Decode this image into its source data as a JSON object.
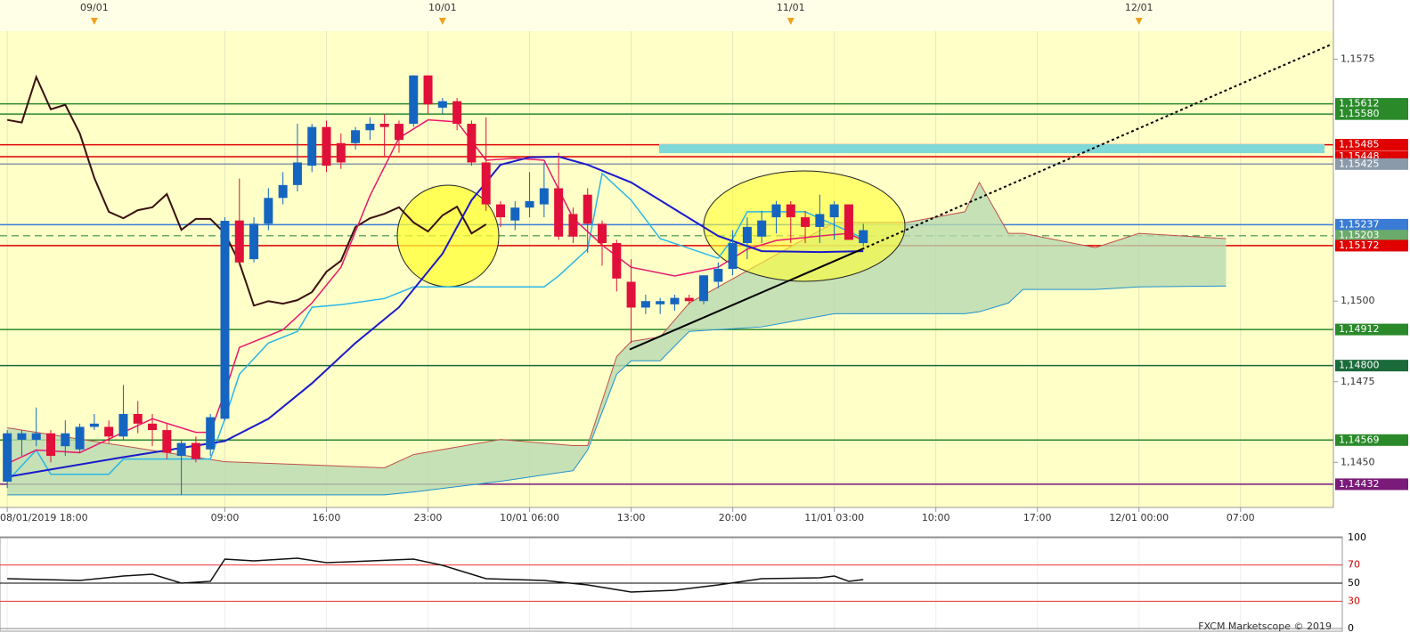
{
  "chart_data": {
    "type": "candlestick",
    "xlim": [
      -0.5,
      91.4
    ],
    "ylim": [
      1.1436,
      1.1584
    ],
    "yticks": [
      {
        "value": 1.1575,
        "label": "1,1575"
      },
      {
        "value": 1.15,
        "label": "1,1500"
      },
      {
        "value": 1.1475,
        "label": "1,1475"
      },
      {
        "value": 1.145,
        "label": "1,1450"
      }
    ],
    "xticks": [
      {
        "value": 0,
        "label": "08/01/2019 18:00"
      },
      {
        "value": 15,
        "label": "09:00"
      },
      {
        "value": 22,
        "label": "16:00"
      },
      {
        "value": 29,
        "label": "23:00"
      },
      {
        "value": 36,
        "label": "10/01 06:00"
      },
      {
        "value": 43,
        "label": "13:00"
      },
      {
        "value": 50,
        "label": "20:00"
      },
      {
        "value": 57,
        "label": "11/01 03:00"
      },
      {
        "value": 64,
        "label": "10:00"
      },
      {
        "value": 71,
        "label": "17:00"
      },
      {
        "value": 78,
        "label": "12/01 00:00"
      },
      {
        "value": 85,
        "label": "07:00"
      }
    ],
    "x2ticks": [
      {
        "value": 6,
        "label": "09/01"
      },
      {
        "value": 30,
        "label": "10/01"
      },
      {
        "value": 54,
        "label": "11/01"
      },
      {
        "value": 78,
        "label": "12/01"
      }
    ],
    "up_color": "#1565c0",
    "down_color": "#e0103a",
    "open": [
      1.1444,
      1.1457,
      1.1457,
      1.1459,
      1.1455,
      1.1454,
      1.1461,
      1.1461,
      1.1458,
      1.1465,
      1.1462,
      1.146,
      1.1452,
      1.1456,
      1.1454,
      1.14635,
      1.1525,
      1.1513,
      1.1524,
      1.1532,
      1.1536,
      1.1542,
      1.1554,
      1.1549,
      1.1549,
      1.1553,
      1.1555,
      1.1555,
      1.1555,
      1.157,
      1.156,
      1.1562,
      1.1555,
      1.1543,
      1.153,
      1.1525,
      1.1529,
      1.153,
      1.1535,
      1.1527,
      1.1533,
      1.1524,
      1.1518,
      1.1506,
      1.1498,
      1.1499,
      1.1499,
      1.1501,
      1.15,
      1.1506,
      1.151,
      1.1518,
      1.152,
      1.1526,
      1.153,
      1.1526,
      1.1523,
      1.1526,
      1.153,
      1.1518
    ],
    "high": [
      1.146,
      1.146,
      1.1467,
      1.146,
      1.1463,
      1.1462,
      1.1465,
      1.1463,
      1.1474,
      1.1469,
      1.1465,
      1.1462,
      1.1457,
      1.1458,
      1.1465,
      1.1526,
      1.1538,
      1.1526,
      1.1535,
      1.154,
      1.1555,
      1.1555,
      1.1556,
      1.1552,
      1.1554,
      1.1557,
      1.1558,
      1.1556,
      1.157,
      1.157,
      1.1563,
      1.1563,
      1.1556,
      1.1557,
      1.1531,
      1.1531,
      1.154,
      1.1543,
      1.1546,
      1.1529,
      1.1535,
      1.1525,
      1.1519,
      1.1513,
      1.1502,
      1.1501,
      1.1502,
      1.1502,
      1.1508,
      1.1512,
      1.1522,
      1.1526,
      1.1528,
      1.1531,
      1.1531,
      1.1528,
      1.1533,
      1.1531,
      1.153,
      1.1524
    ],
    "low": [
      1.1442,
      1.1452,
      1.1455,
      1.145,
      1.1452,
      1.1453,
      1.146,
      1.1456,
      1.1457,
      1.1459,
      1.1455,
      1.1451,
      1.144,
      1.145,
      1.1452,
      1.1463,
      1.1511,
      1.1512,
      1.1522,
      1.153,
      1.1534,
      1.154,
      1.154,
      1.1541,
      1.1547,
      1.155,
      1.1545,
      1.1546,
      1.1554,
      1.1558,
      1.1558,
      1.1553,
      1.1542,
      1.1528,
      1.1523,
      1.1522,
      1.1526,
      1.1526,
      1.1519,
      1.1518,
      1.1515,
      1.1511,
      1.1503,
      1.1487,
      1.1496,
      1.1496,
      1.1497,
      1.1499,
      1.1499,
      1.1504,
      1.1508,
      1.1513,
      1.1518,
      1.1521,
      1.1518,
      1.1518,
      1.1518,
      1.1519,
      1.1519,
      1.1517
    ],
    "close": [
      1.1459,
      1.1459,
      1.1459,
      1.1452,
      1.1459,
      1.1461,
      1.1462,
      1.1458,
      1.1465,
      1.1462,
      1.146,
      1.1453,
      1.1456,
      1.1451,
      1.1464,
      1.15249,
      1.1512,
      1.1524,
      1.1532,
      1.1536,
      1.1543,
      1.1554,
      1.1542,
      1.1543,
      1.1553,
      1.1555,
      1.1554,
      1.155,
      1.157,
      1.1561,
      1.1562,
      1.1555,
      1.1543,
      1.153,
      1.1526,
      1.1529,
      1.1531,
      1.1535,
      1.152,
      1.152,
      1.1524,
      1.1518,
      1.1507,
      1.1498,
      1.15,
      1.15,
      1.1501,
      1.15,
      1.1508,
      1.151,
      1.1518,
      1.1523,
      1.1525,
      1.153,
      1.1526,
      1.1523,
      1.1527,
      1.153,
      1.1519,
      1.1522
    ],
    "cloud": {
      "color": "#b8d9b0",
      "edge": "#c0504d",
      "x": [
        0,
        15,
        26,
        28,
        34,
        39,
        40,
        42,
        43,
        45,
        47,
        52,
        57,
        62,
        66,
        67,
        69,
        70,
        75,
        78,
        84
      ],
      "upper": [
        1.14607,
        1.14502,
        1.14483,
        1.14524,
        1.14571,
        1.14552,
        1.14552,
        1.14828,
        1.14875,
        1.14889,
        1.14994,
        1.15119,
        1.15244,
        1.15244,
        1.15277,
        1.15368,
        1.1521,
        1.1521,
        1.15166,
        1.1521,
        1.15194
      ],
      "lower": [
        1.14399,
        1.14399,
        1.14399,
        1.14408,
        1.14441,
        1.14474,
        1.14538,
        1.14773,
        1.14815,
        1.14815,
        1.14906,
        1.1492,
        1.14961,
        1.14961,
        1.14961,
        1.14967,
        1.14994,
        1.15036,
        1.15036,
        1.15044,
        1.15047
      ],
      "lower_color": "#1e90d0"
    },
    "lines": [
      {
        "color": "#3a1010",
        "width": 2,
        "x": [
          0,
          1,
          2,
          3,
          4,
          5,
          6,
          7,
          8,
          9,
          10,
          11,
          12,
          13,
          14,
          15,
          16,
          17,
          18,
          19,
          20,
          21,
          22,
          23,
          24,
          25,
          26,
          27,
          28,
          29,
          30,
          31,
          32,
          33
        ],
        "values": [
          1.15562,
          1.15554,
          1.15695,
          1.15595,
          1.15609,
          1.1552,
          1.15382,
          1.15277,
          1.15257,
          1.15282,
          1.15291,
          1.15332,
          1.15221,
          1.15255,
          1.15255,
          1.1521,
          1.15119,
          1.14986,
          1.15,
          1.14992,
          1.15003,
          1.15028,
          1.15091,
          1.15125,
          1.1523,
          1.15257,
          1.15271,
          1.15291,
          1.15244,
          1.15216,
          1.15266,
          1.15293,
          1.1521,
          1.15238
        ]
      },
      {
        "color": "#29b6e8",
        "width": 1.5,
        "x": [
          0,
          2,
          3,
          7,
          8,
          14,
          15,
          16,
          18,
          20,
          21,
          23,
          26,
          28,
          37,
          38,
          40,
          41,
          43,
          45,
          49,
          50,
          51,
          55,
          58,
          59
        ],
        "values": [
          1.14441,
          1.14538,
          1.14463,
          1.14463,
          1.1451,
          1.1451,
          1.14635,
          1.14773,
          1.1487,
          1.14906,
          1.14981,
          1.14989,
          1.15008,
          1.15044,
          1.15044,
          1.15078,
          1.15161,
          1.15396,
          1.15313,
          1.15194,
          1.15133,
          1.15194,
          1.15277,
          1.15277,
          1.15216,
          1.15194
        ]
      },
      {
        "color": "#e8186e",
        "width": 1.5,
        "x": [
          0,
          2,
          5,
          10,
          13,
          14,
          15,
          16,
          19,
          21,
          23,
          25,
          27,
          29,
          31,
          33,
          35,
          37,
          39,
          41,
          43,
          46,
          49,
          51,
          53,
          56,
          58,
          59
        ],
        "values": [
          1.14496,
          1.14538,
          1.1453,
          1.14635,
          1.14593,
          1.14593,
          1.14718,
          1.14856,
          1.14911,
          1.14994,
          1.15105,
          1.15327,
          1.15506,
          1.15562,
          1.15556,
          1.15437,
          1.15443,
          1.15437,
          1.15257,
          1.15174,
          1.15105,
          1.15078,
          1.15105,
          1.15161,
          1.15188,
          1.15202,
          1.1521,
          1.15188
        ]
      },
      {
        "color": "#1a1acc",
        "width": 2,
        "x": [
          0,
          8,
          15,
          18,
          21,
          24,
          27,
          30,
          32,
          34,
          36,
          38,
          40,
          43,
          46,
          49,
          52,
          56,
          59
        ],
        "values": [
          1.14455,
          1.14516,
          1.14566,
          1.14635,
          1.14745,
          1.1487,
          1.14981,
          1.15147,
          1.15313,
          1.15423,
          1.15446,
          1.15448,
          1.15423,
          1.15368,
          1.15285,
          1.15202,
          1.15155,
          1.15152,
          1.15155
        ]
      }
    ],
    "levels": [
      {
        "value": 1.15612,
        "label": "1,15612",
        "color": "#2a8a2a"
      },
      {
        "value": 1.1558,
        "label": "1,15580",
        "color": "#2a8a2a"
      },
      {
        "value": 1.15485,
        "label": "1,15485",
        "color": "#e00000"
      },
      {
        "value": 1.15448,
        "label": "1,15448",
        "color": "#e00000"
      },
      {
        "value": 1.15425,
        "label": "1,15425",
        "color": "#8a9aaa"
      },
      {
        "value": 1.15237,
        "label": "1,15237",
        "color": "#3a7bd5"
      },
      {
        "value": 1.15203,
        "label": "1,15203",
        "color": "#6aaa6a",
        "dash": true
      },
      {
        "value": 1.15172,
        "label": "1,15172",
        "color": "#e00000"
      },
      {
        "value": 1.14912,
        "label": "1,14912",
        "color": "#2a8a2a"
      },
      {
        "value": 1.148,
        "label": "1,14800",
        "color": "#1a6a3a"
      },
      {
        "value": 1.14569,
        "label": "1,14569",
        "color": "#2a8a2a"
      },
      {
        "value": 1.14432,
        "label": "1,14432",
        "color": "#7a1a7a"
      }
    ],
    "trendlines": [
      {
        "x": [
          42.9,
          58.9
        ],
        "values": [
          1.1485,
          1.15161
        ],
        "color": "#000",
        "dash": false
      },
      {
        "x": [
          58.9,
          91.3
        ],
        "values": [
          1.15161,
          1.15797
        ],
        "color": "#000",
        "dash": true
      }
    ],
    "rsi": {
      "ylim": [
        0,
        100
      ],
      "yticks": [
        100,
        70,
        50,
        30,
        0
      ],
      "tick_colors": [
        "#888",
        "#e33",
        "#000",
        "#e33",
        "#888"
      ],
      "label_colors": [
        "#000",
        "#c00",
        "#000",
        "#c00",
        "#000"
      ],
      "x": [
        0,
        5,
        8,
        10,
        12,
        14,
        15,
        17,
        20,
        22,
        28,
        30,
        33,
        37,
        40,
        43,
        46,
        49,
        52,
        56,
        57,
        58,
        59
      ],
      "values": [
        54.9,
        52.9,
        57.8,
        59.8,
        50,
        52,
        76.5,
        74.5,
        77.5,
        72.5,
        76.5,
        69.6,
        54.9,
        52.9,
        48,
        40.2,
        42.2,
        48,
        54.9,
        55.9,
        57.8,
        52,
        53.9
      ]
    },
    "footer": "FXCM Marketscope © 2019"
  }
}
